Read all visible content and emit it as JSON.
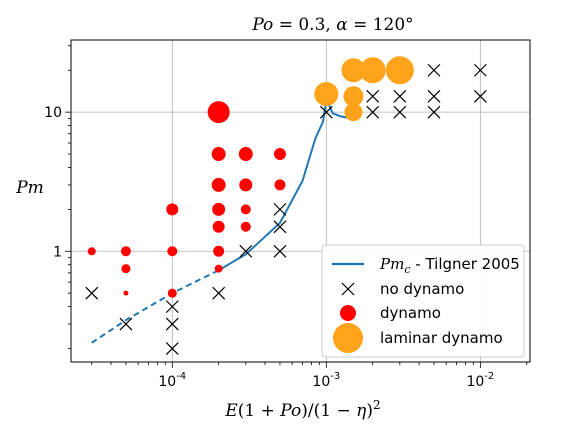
{
  "chart_data": {
    "type": "scatter",
    "title": "Po = 0.3, α = 120°",
    "xlabel": "E(1 + Po)/(1 − η)²",
    "ylabel": "Pm",
    "xscale": "log",
    "yscale": "log",
    "xlim": [
      2.2e-05,
      0.021
    ],
    "ylim": [
      0.16,
      33
    ],
    "x_ticks": [
      {
        "value": 0.0001,
        "base": "10",
        "exp": "-4"
      },
      {
        "value": 0.001,
        "base": "10",
        "exp": "-3"
      },
      {
        "value": 0.01,
        "base": "10",
        "exp": "-2"
      }
    ],
    "y_ticks": [
      {
        "value": 1,
        "label": "1"
      },
      {
        "value": 10,
        "label": "10"
      }
    ],
    "grid": true,
    "legend_position": "lower-right",
    "series": [
      {
        "name": "Pm_c - Tilgner 2005",
        "legend_math": "Pm",
        "legend_sub": "c",
        "legend_rest": " - Tilgner 2005",
        "kind": "line",
        "color": "#1f77b4",
        "dashed_segment": {
          "x": [
            3e-05,
            5e-05,
            0.0001,
            0.0002
          ],
          "y": [
            0.22,
            0.32,
            0.5,
            0.73
          ]
        },
        "solid_segment": {
          "x": [
            0.0002,
            0.0003,
            0.0005,
            0.0007,
            0.00085,
            0.00095,
            0.001,
            0.00105,
            0.0011,
            0.00125,
            0.0014
          ],
          "y": [
            0.73,
            0.95,
            1.6,
            3.2,
            6.5,
            8.5,
            12,
            11,
            9.8,
            9.3,
            9.1
          ]
        }
      },
      {
        "name": "no dynamo",
        "kind": "marker",
        "marker": "x",
        "color": "#000000",
        "points": [
          [
            3e-05,
            0.5
          ],
          [
            5e-05,
            0.3
          ],
          [
            0.0001,
            0.4
          ],
          [
            0.0001,
            0.3
          ],
          [
            0.0001,
            0.2
          ],
          [
            0.0002,
            0.5
          ],
          [
            0.0003,
            1.0
          ],
          [
            0.0005,
            1.0
          ],
          [
            0.0005,
            1.5
          ],
          [
            0.0005,
            2.0
          ],
          [
            0.001,
            10
          ],
          [
            0.0015,
            12
          ],
          [
            0.002,
            10
          ],
          [
            0.002,
            13
          ],
          [
            0.003,
            10
          ],
          [
            0.003,
            13
          ],
          [
            0.005,
            10
          ],
          [
            0.005,
            13
          ],
          [
            0.005,
            20
          ],
          [
            0.01,
            13
          ],
          [
            0.01,
            20
          ]
        ]
      },
      {
        "name": "dynamo",
        "kind": "marker",
        "marker": "circle",
        "color": "#ff0000",
        "points": [
          {
            "x": 3e-05,
            "y": 1.0,
            "r": 4
          },
          {
            "x": 5e-05,
            "y": 1.0,
            "r": 5
          },
          {
            "x": 5e-05,
            "y": 0.75,
            "r": 4.5
          },
          {
            "x": 5e-05,
            "y": 0.5,
            "r": 2.5
          },
          {
            "x": 0.0001,
            "y": 2.0,
            "r": 6
          },
          {
            "x": 0.0001,
            "y": 1.0,
            "r": 5
          },
          {
            "x": 0.0001,
            "y": 0.5,
            "r": 4.5
          },
          {
            "x": 0.0002,
            "y": 10,
            "r": 11
          },
          {
            "x": 0.0002,
            "y": 5,
            "r": 7
          },
          {
            "x": 0.0002,
            "y": 3,
            "r": 7
          },
          {
            "x": 0.0002,
            "y": 2,
            "r": 6.5
          },
          {
            "x": 0.0002,
            "y": 1.5,
            "r": 6
          },
          {
            "x": 0.0002,
            "y": 1.0,
            "r": 5.5
          },
          {
            "x": 0.0002,
            "y": 0.75,
            "r": 4
          },
          {
            "x": 0.0003,
            "y": 5,
            "r": 7
          },
          {
            "x": 0.0003,
            "y": 3,
            "r": 6.5
          },
          {
            "x": 0.0003,
            "y": 2,
            "r": 5
          },
          {
            "x": 0.0003,
            "y": 1.5,
            "r": 5
          },
          {
            "x": 0.0005,
            "y": 5,
            "r": 6
          },
          {
            "x": 0.0005,
            "y": 3,
            "r": 5.5
          }
        ]
      },
      {
        "name": "laminar dynamo",
        "kind": "marker",
        "marker": "circle",
        "color": "#ffa31a",
        "points": [
          {
            "x": 0.001,
            "y": 13.5,
            "r": 12
          },
          {
            "x": 0.0015,
            "y": 20,
            "r": 12
          },
          {
            "x": 0.0015,
            "y": 13,
            "r": 10
          },
          {
            "x": 0.0015,
            "y": 10,
            "r": 9
          },
          {
            "x": 0.002,
            "y": 20,
            "r": 13
          },
          {
            "x": 0.003,
            "y": 20,
            "r": 14
          }
        ]
      }
    ]
  }
}
